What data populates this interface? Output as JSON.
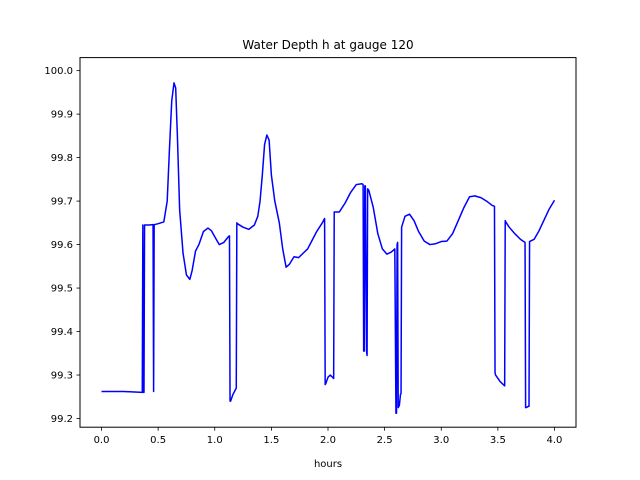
{
  "chart_data": {
    "type": "line",
    "title": "Water Depth h at gauge 120",
    "xlabel": "hours",
    "ylabel": "",
    "xlim": [
      -0.19,
      4.19
    ],
    "ylim": [
      99.18,
      100.03
    ],
    "grid": false,
    "x_ticks": [
      0.0,
      0.5,
      1.0,
      1.5,
      2.0,
      2.5,
      3.0,
      3.5,
      4.0
    ],
    "x_tick_labels": [
      "0.0",
      "0.5",
      "1.0",
      "1.5",
      "2.0",
      "2.5",
      "3.0",
      "3.5",
      "4.0"
    ],
    "y_ticks": [
      99.2,
      99.3,
      99.4,
      99.5,
      99.6,
      99.7,
      99.8,
      99.9,
      100.0
    ],
    "y_tick_labels": [
      "99.2",
      "99.3",
      "99.4",
      "99.5",
      "99.6",
      "99.7",
      "99.8",
      "99.9",
      "100.0"
    ],
    "series": [
      {
        "color": "#0000ff",
        "x": [
          0.0,
          0.2,
          0.36,
          0.365,
          0.37,
          0.375,
          0.38,
          0.385,
          0.42,
          0.455,
          0.46,
          0.465,
          0.47,
          0.5,
          0.55,
          0.58,
          0.6,
          0.62,
          0.64,
          0.655,
          0.67,
          0.69,
          0.72,
          0.75,
          0.78,
          0.8,
          0.83,
          0.86,
          0.9,
          0.94,
          0.97,
          1.0,
          1.04,
          1.08,
          1.12,
          1.13,
          1.135,
          1.14,
          1.16,
          1.18,
          1.19,
          1.195,
          1.2,
          1.25,
          1.3,
          1.35,
          1.38,
          1.4,
          1.42,
          1.44,
          1.46,
          1.48,
          1.5,
          1.53,
          1.57,
          1.6,
          1.63,
          1.66,
          1.7,
          1.74,
          1.78,
          1.82,
          1.86,
          1.9,
          1.95,
          1.97,
          1.975,
          1.98,
          2.0,
          2.02,
          2.05,
          2.055,
          2.06,
          2.1,
          2.15,
          2.2,
          2.25,
          2.3,
          2.31,
          2.315,
          2.32,
          2.325,
          2.33,
          2.34,
          2.345,
          2.35,
          2.36,
          2.4,
          2.44,
          2.48,
          2.52,
          2.56,
          2.59,
          2.6,
          2.605,
          2.61,
          2.615,
          2.62,
          2.63,
          2.64,
          2.645,
          2.65,
          2.68,
          2.72,
          2.76,
          2.8,
          2.85,
          2.9,
          2.95,
          3.0,
          3.05,
          3.1,
          3.15,
          3.2,
          3.25,
          3.3,
          3.32,
          3.35,
          3.4,
          3.45,
          3.47,
          3.475,
          3.48,
          3.52,
          3.56,
          3.565,
          3.57,
          3.6,
          3.65,
          3.7,
          3.74,
          3.745,
          3.75,
          3.77,
          3.775,
          3.78,
          3.82,
          3.86,
          3.9,
          3.95,
          4.0
        ],
        "y": [
          99.262,
          99.262,
          99.26,
          99.645,
          99.26,
          99.26,
          99.645,
          99.645,
          99.645,
          99.646,
          99.262,
          99.646,
          99.646,
          99.648,
          99.652,
          99.7,
          99.82,
          99.93,
          99.972,
          99.96,
          99.85,
          99.68,
          99.58,
          99.53,
          99.52,
          99.54,
          99.585,
          99.6,
          99.63,
          99.638,
          99.632,
          99.618,
          99.6,
          99.605,
          99.618,
          99.62,
          99.24,
          99.24,
          99.255,
          99.265,
          99.27,
          99.65,
          99.648,
          99.64,
          99.635,
          99.645,
          99.665,
          99.7,
          99.76,
          99.83,
          99.852,
          99.84,
          99.76,
          99.7,
          99.65,
          99.59,
          99.548,
          99.555,
          99.572,
          99.57,
          99.58,
          99.59,
          99.61,
          99.63,
          99.65,
          99.66,
          99.278,
          99.28,
          99.295,
          99.3,
          99.292,
          99.675,
          99.675,
          99.675,
          99.695,
          99.72,
          99.738,
          99.74,
          99.738,
          99.355,
          99.355,
          99.735,
          99.735,
          99.355,
          99.345,
          99.728,
          99.725,
          99.685,
          99.625,
          99.59,
          99.578,
          99.583,
          99.59,
          99.212,
          99.212,
          99.6,
          99.605,
          99.225,
          99.23,
          99.255,
          99.258,
          99.64,
          99.665,
          99.67,
          99.655,
          99.63,
          99.608,
          99.6,
          99.602,
          99.607,
          99.608,
          99.625,
          99.655,
          99.685,
          99.71,
          99.712,
          99.71,
          99.708,
          99.7,
          99.69,
          99.688,
          99.305,
          99.3,
          99.285,
          99.275,
          99.655,
          99.652,
          99.64,
          99.625,
          99.612,
          99.605,
          99.225,
          99.225,
          99.228,
          99.228,
          99.607,
          99.612,
          99.63,
          99.652,
          99.68,
          99.702
        ]
      }
    ]
  }
}
